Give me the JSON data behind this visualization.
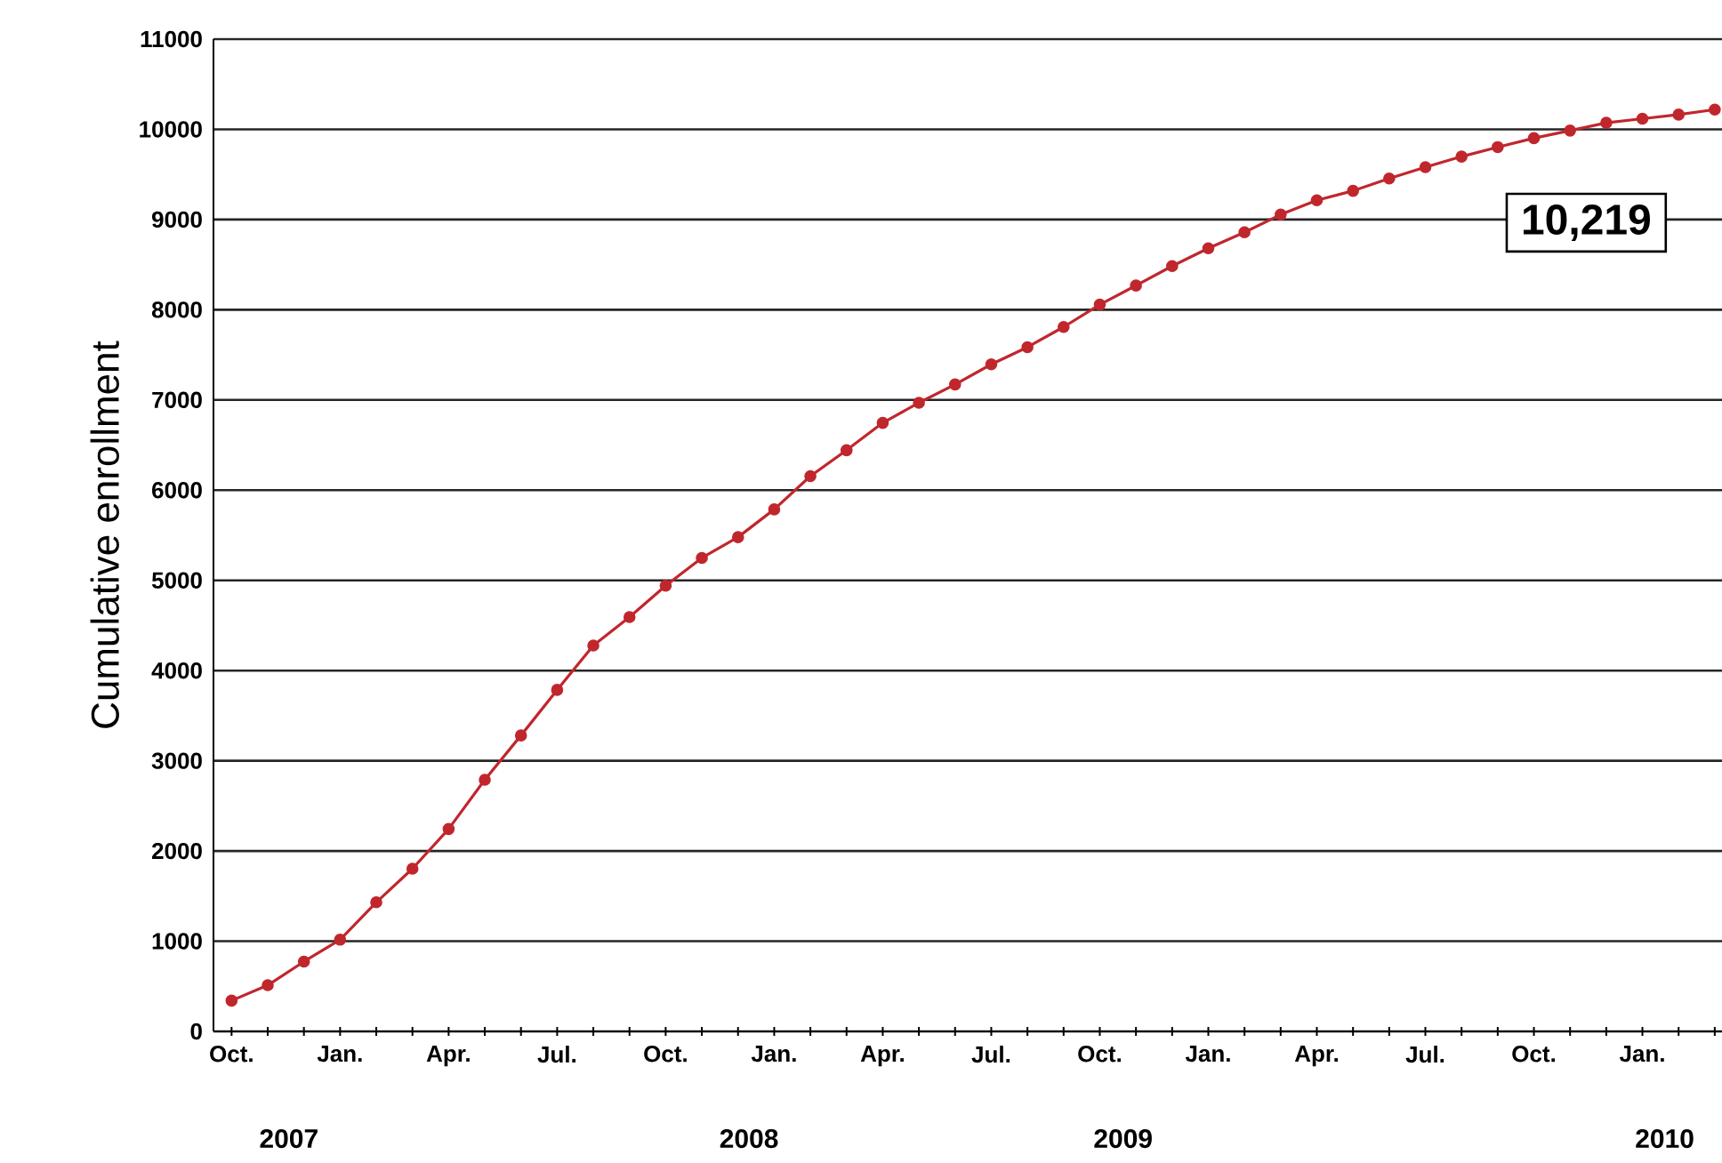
{
  "chart_data": {
    "type": "line",
    "ylabel": "Cumulative enrollment",
    "categories": [
      "Oct.",
      null,
      null,
      "Jan.",
      null,
      null,
      "Apr.",
      null,
      null,
      "Jul.",
      null,
      null,
      "Oct.",
      null,
      null,
      "Jan.",
      null,
      null,
      "Apr.",
      null,
      null,
      "Jul.",
      null,
      null,
      "Oct.",
      null,
      null,
      "Jan.",
      null,
      null,
      "Apr.",
      null,
      null,
      "Jul.",
      null,
      null,
      "Oct.",
      null,
      null,
      "Jan.",
      null,
      null
    ],
    "series": [
      {
        "color": "#c0272d",
        "values": [
          341,
          512,
          774,
          1017,
          1431,
          1804,
          2244,
          2789,
          3281,
          3786,
          4278,
          4593,
          4941,
          5249,
          5479,
          5787,
          6155,
          6443,
          6746,
          6969,
          7172,
          7395,
          7585,
          7809,
          8057,
          8268,
          8484,
          8681,
          8858,
          9055,
          9213,
          9318,
          9455,
          9580,
          9698,
          9803,
          9902,
          9986,
          10072,
          10118,
          10163,
          10219
        ]
      }
    ],
    "ylim": [
      0,
      11000
    ],
    "yticks": [
      0,
      1000,
      2000,
      3000,
      4000,
      5000,
      6000,
      7000,
      8000,
      9000,
      10000,
      11000
    ],
    "grid": "y",
    "marker": "circle",
    "line_style": "solid",
    "annotations": [
      "10,219",
      "2007",
      "2008",
      "2009",
      "2010"
    ]
  }
}
